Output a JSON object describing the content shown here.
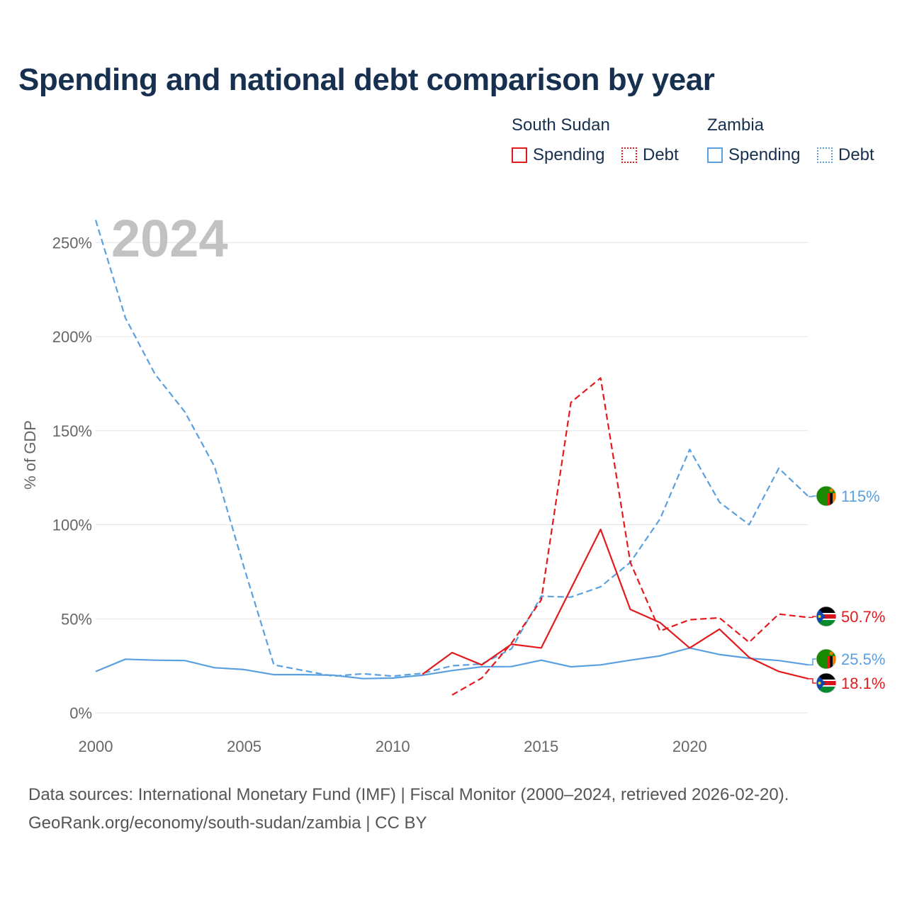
{
  "title": "Spending and national debt comparison by year",
  "legend": {
    "groups": [
      {
        "name": "South Sudan",
        "items": [
          {
            "label": "Spending",
            "style": "solid",
            "color": "#e31a1c"
          },
          {
            "label": "Debt",
            "style": "dotted",
            "color": "#e31a1c"
          }
        ]
      },
      {
        "name": "Zambia",
        "items": [
          {
            "label": "Spending",
            "style": "solid",
            "color": "#5aa0e0"
          },
          {
            "label": "Debt",
            "style": "dotted",
            "color": "#5aa0e0"
          }
        ]
      }
    ]
  },
  "year_overlay": "2024",
  "footer": {
    "line1": "Data sources: International Monetary Fund (IMF) | Fiscal Monitor (2000–2024, retrieved 2026-02-20).",
    "line2": "GeoRank.org/economy/south-sudan/zambia | CC BY"
  },
  "colors": {
    "south_sudan": "#e31a1c",
    "zambia": "#5aa0e0",
    "grid": "#e6e6e6",
    "axis_text": "#666666"
  },
  "chart_data": {
    "type": "line",
    "title": "Spending and national debt comparison by year",
    "xlabel": "",
    "ylabel": "% of GDP",
    "xlim": [
      2000,
      2024
    ],
    "ylim": [
      0,
      260
    ],
    "xticks": [
      2000,
      2005,
      2010,
      2015,
      2020
    ],
    "xtick_labels": [
      "2000",
      "2005",
      "2010",
      "2015",
      "2020"
    ],
    "yticks": [
      0,
      50,
      100,
      150,
      200,
      250
    ],
    "ytick_labels": [
      "0%",
      "50%",
      "100%",
      "150%",
      "200%",
      "250%"
    ],
    "series": [
      {
        "name": "Zambia Debt",
        "country": "Zambia",
        "kind": "Debt",
        "dash": true,
        "color": "#5aa0e0",
        "x": [
          2000,
          2001,
          2002,
          2003,
          2004,
          2005,
          2006,
          2007,
          2008,
          2009,
          2010,
          2011,
          2012,
          2013,
          2014,
          2015,
          2016,
          2017,
          2018,
          2019,
          2020,
          2021,
          2022,
          2023,
          2024
        ],
        "values": [
          262,
          210,
          180,
          160,
          131,
          77,
          25.5,
          22.5,
          19.5,
          20.8,
          19.5,
          21,
          25,
          26,
          34,
          62,
          61.5,
          67,
          80,
          103,
          140,
          112,
          100,
          130,
          115
        ],
        "end_label": "115%"
      },
      {
        "name": "Zambia Spending",
        "country": "Zambia",
        "kind": "Spending",
        "dash": false,
        "color": "#5aa0e0",
        "x": [
          2000,
          2001,
          2002,
          2003,
          2004,
          2005,
          2006,
          2007,
          2008,
          2009,
          2010,
          2011,
          2012,
          2013,
          2014,
          2015,
          2016,
          2017,
          2018,
          2019,
          2020,
          2021,
          2022,
          2023,
          2024
        ],
        "values": [
          22,
          28.5,
          28,
          27.8,
          24,
          23,
          20.3,
          20.3,
          20,
          18.2,
          18.5,
          20,
          22.5,
          24.5,
          24.6,
          28,
          24.5,
          25.5,
          28,
          30.3,
          34.5,
          31,
          29,
          27.8,
          25.5
        ],
        "end_label": "25.5%"
      },
      {
        "name": "South Sudan Debt",
        "country": "South Sudan",
        "kind": "Debt",
        "dash": true,
        "color": "#e31a1c",
        "x": [
          2012,
          2013,
          2014,
          2015,
          2016,
          2017,
          2018,
          2019,
          2020,
          2021,
          2022,
          2023,
          2024
        ],
        "values": [
          9.5,
          18.5,
          37,
          60,
          165,
          178,
          80,
          43.5,
          49.5,
          50.5,
          37.5,
          52.5,
          50.7
        ],
        "end_label": "50.7%"
      },
      {
        "name": "South Sudan Spending",
        "country": "South Sudan",
        "kind": "Spending",
        "dash": false,
        "color": "#e31a1c",
        "x": [
          2011,
          2012,
          2013,
          2014,
          2015,
          2016,
          2017,
          2018,
          2019,
          2020,
          2021,
          2022,
          2023,
          2024
        ],
        "values": [
          20.5,
          32,
          25.5,
          36.5,
          34.5,
          66,
          97.5,
          55,
          48,
          34.5,
          44.5,
          29.5,
          22,
          18.1
        ],
        "end_label": "18.1%"
      }
    ]
  }
}
